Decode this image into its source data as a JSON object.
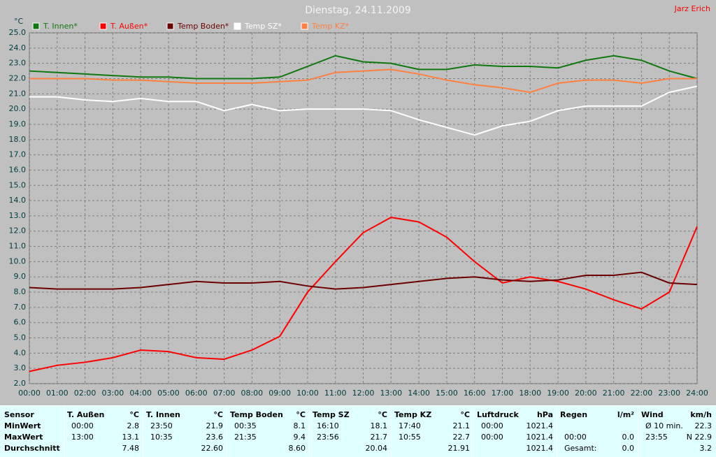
{
  "chart_data": {
    "type": "line",
    "title": "Dienstag, 24.11.2009",
    "author": "Jarz Erich",
    "y_label": "°C",
    "x": [
      0,
      1,
      2,
      3,
      4,
      5,
      6,
      7,
      8,
      9,
      10,
      11,
      12,
      13,
      14,
      15,
      16,
      17,
      18,
      19,
      20,
      21,
      22,
      23,
      24
    ],
    "xlim": [
      0,
      24
    ],
    "xticks": [
      {
        "value": 0,
        "label": "00:00"
      },
      {
        "value": 1,
        "label": "01:00"
      },
      {
        "value": 2,
        "label": "02:00"
      },
      {
        "value": 3,
        "label": "03:00"
      },
      {
        "value": 4,
        "label": "04:00"
      },
      {
        "value": 5,
        "label": "05:00"
      },
      {
        "value": 6,
        "label": "06:00"
      },
      {
        "value": 7,
        "label": "07:00"
      },
      {
        "value": 8,
        "label": "08:00"
      },
      {
        "value": 9,
        "label": "09:00"
      },
      {
        "value": 10,
        "label": "10:00"
      },
      {
        "value": 11,
        "label": "11:00"
      },
      {
        "value": 12,
        "label": "12:00"
      },
      {
        "value": 13,
        "label": "13:00"
      },
      {
        "value": 14,
        "label": "14:00"
      },
      {
        "value": 15,
        "label": "15:00"
      },
      {
        "value": 16,
        "label": "16:00"
      },
      {
        "value": 17,
        "label": "17:00"
      },
      {
        "value": 18,
        "label": "18:00"
      },
      {
        "value": 19,
        "label": "19:00"
      },
      {
        "value": 20,
        "label": "20:00"
      },
      {
        "value": 21,
        "label": "21:00"
      },
      {
        "value": 22,
        "label": "22:00"
      },
      {
        "value": 23,
        "label": "23:00"
      },
      {
        "value": 24,
        "label": "24:00"
      }
    ],
    "ylim": [
      2,
      25
    ],
    "yticks": [
      {
        "value": 2,
        "label": "2.0"
      },
      {
        "value": 3,
        "label": "3.0"
      },
      {
        "value": 4,
        "label": "4.0"
      },
      {
        "value": 5,
        "label": "5.0"
      },
      {
        "value": 6,
        "label": "6.0"
      },
      {
        "value": 7,
        "label": "7.0"
      },
      {
        "value": 8,
        "label": "8.0"
      },
      {
        "value": 9,
        "label": "9.0"
      },
      {
        "value": 10,
        "label": "10.0"
      },
      {
        "value": 11,
        "label": "11.0"
      },
      {
        "value": 12,
        "label": "12.0"
      },
      {
        "value": 13,
        "label": "13.0"
      },
      {
        "value": 14,
        "label": "14.0"
      },
      {
        "value": 15,
        "label": "15.0"
      },
      {
        "value": 16,
        "label": "16.0"
      },
      {
        "value": 17,
        "label": "17.0"
      },
      {
        "value": 18,
        "label": "18.0"
      },
      {
        "value": 19,
        "label": "19.0"
      },
      {
        "value": 20,
        "label": "20.0"
      },
      {
        "value": 21,
        "label": "21.0"
      },
      {
        "value": 22,
        "label": "22.0"
      },
      {
        "value": 23,
        "label": "23.0"
      },
      {
        "value": 24,
        "label": "24.0"
      },
      {
        "value": 25,
        "label": "25.0"
      }
    ],
    "grid": true,
    "series": [
      {
        "name": "T. Innen*",
        "color": "#107810",
        "values": [
          22.5,
          22.4,
          22.3,
          22.2,
          22.1,
          22.1,
          22.0,
          22.0,
          22.0,
          22.1,
          22.8,
          23.5,
          23.1,
          23.0,
          22.6,
          22.6,
          22.9,
          22.8,
          22.8,
          22.7,
          23.2,
          23.5,
          23.2,
          22.5,
          22.0
        ]
      },
      {
        "name": "T. Außen*",
        "color": "#ff0000",
        "values": [
          2.8,
          3.2,
          3.4,
          3.7,
          4.2,
          4.1,
          3.7,
          3.6,
          4.2,
          5.1,
          8.0,
          10.0,
          11.9,
          12.9,
          12.6,
          11.6,
          10.0,
          8.6,
          9.0,
          8.7,
          8.2,
          7.5,
          6.9,
          8.0,
          12.3
        ]
      },
      {
        "name": "Temp Boden*",
        "color": "#6b0000",
        "values": [
          8.3,
          8.2,
          8.2,
          8.2,
          8.3,
          8.5,
          8.7,
          8.6,
          8.6,
          8.7,
          8.4,
          8.2,
          8.3,
          8.5,
          8.7,
          8.9,
          9.0,
          8.8,
          8.7,
          8.8,
          9.1,
          9.1,
          9.3,
          8.6,
          8.5
        ]
      },
      {
        "name": "Temp SZ*",
        "color": "#ffffff",
        "values": [
          20.8,
          20.8,
          20.6,
          20.5,
          20.7,
          20.5,
          20.5,
          19.9,
          20.3,
          19.9,
          20.0,
          20.0,
          20.0,
          19.9,
          19.3,
          18.8,
          18.3,
          18.9,
          19.2,
          19.9,
          20.2,
          20.2,
          20.2,
          21.1,
          21.5
        ]
      },
      {
        "name": "Temp KZ*",
        "color": "#ff8040",
        "values": [
          22.0,
          22.0,
          22.0,
          21.9,
          21.9,
          21.8,
          21.7,
          21.7,
          21.7,
          21.8,
          21.9,
          22.4,
          22.5,
          22.6,
          22.3,
          21.9,
          21.6,
          21.4,
          21.1,
          21.7,
          21.9,
          21.9,
          21.7,
          22.0,
          22.0
        ]
      }
    ]
  },
  "table": {
    "header": "Sensor",
    "row_labels": [
      "MinWert",
      "MaxWert",
      "Durchschnitt"
    ],
    "columns": [
      {
        "name": "T. Außen",
        "unit": "°C",
        "rows": [
          [
            "00:00",
            "2.8"
          ],
          [
            "13:00",
            "13.1"
          ],
          [
            "7.48"
          ]
        ]
      },
      {
        "name": "T. Innen",
        "unit": "°C",
        "rows": [
          [
            "23:50",
            "21.9"
          ],
          [
            "10:35",
            "23.6"
          ],
          [
            "22.60"
          ]
        ]
      },
      {
        "name": "Temp Boden",
        "unit": "°C",
        "rows": [
          [
            "00:35",
            "8.1"
          ],
          [
            "21:35",
            "9.4"
          ],
          [
            "8.60"
          ]
        ]
      },
      {
        "name": "Temp SZ",
        "unit": "°C",
        "rows": [
          [
            "16:10",
            "18.1"
          ],
          [
            "23:56",
            "21.7"
          ],
          [
            "20.04"
          ]
        ]
      },
      {
        "name": "Temp KZ",
        "unit": "°C",
        "rows": [
          [
            "17:40",
            "21.1"
          ],
          [
            "10:55",
            "22.7"
          ],
          [
            "21.91"
          ]
        ]
      },
      {
        "name": "Luftdruck",
        "unit": "hPa",
        "rows": [
          [
            "00:00",
            "1021.4"
          ],
          [
            "00:00",
            "1021.4"
          ],
          [
            "1021.4"
          ]
        ]
      },
      {
        "name": "Regen",
        "unit": "l/m²",
        "rows": [
          [],
          [
            "00:00",
            "0.0"
          ],
          [
            "Gesamt:",
            "0.0"
          ]
        ]
      },
      {
        "name": "Wind",
        "unit": "km/h",
        "rows": [
          [
            "Ø 10 min.",
            "22.3"
          ],
          [
            "23:55",
            "N 22.9"
          ],
          [
            "3.2"
          ]
        ]
      }
    ]
  }
}
